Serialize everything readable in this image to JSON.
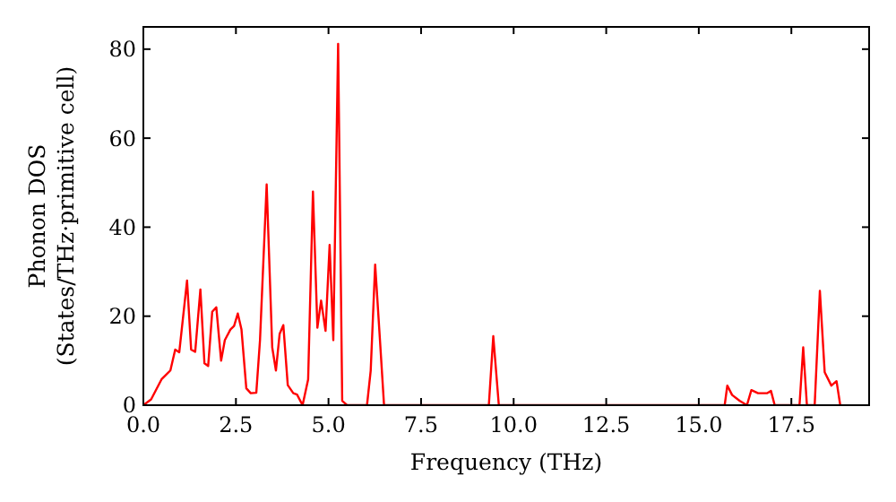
{
  "chart_data": {
    "type": "line",
    "xlabel": "Frequency (THz)",
    "ylabel": "Phonon DOS\n(States/THz·primitive cell)",
    "x": [
      0,
      0.21,
      0.49,
      0.73,
      0.86,
      0.97,
      1.18,
      1.29,
      1.4,
      1.54,
      1.65,
      1.75,
      1.86,
      1.97,
      2.1,
      2.2,
      2.35,
      2.45,
      2.55,
      2.65,
      2.78,
      2.9,
      3.05,
      3.15,
      3.33,
      3.48,
      3.58,
      3.68,
      3.78,
      3.9,
      4.05,
      4.15,
      4.3,
      4.45,
      4.58,
      4.7,
      4.8,
      4.92,
      5.03,
      5.13,
      5.26,
      5.37,
      5.5,
      6.04,
      6.14,
      6.26,
      6.39,
      6.5,
      9.33,
      9.45,
      9.6,
      15.7,
      15.77,
      15.9,
      16.1,
      16.3,
      16.42,
      16.6,
      16.85,
      16.95,
      17.05,
      17.72,
      17.82,
      17.92,
      18.13,
      18.27,
      18.4,
      18.58,
      18.72,
      18.82
    ],
    "series": [
      {
        "color": "#ff0000",
        "values": [
          0,
          1.3,
          5.8,
          7.8,
          12.5,
          11.9,
          28,
          12.5,
          12,
          26,
          9.4,
          8.8,
          21,
          22,
          10,
          14.6,
          17,
          17.8,
          20.6,
          17,
          3.8,
          2.7,
          2.8,
          14.6,
          49.6,
          13,
          7.8,
          16,
          18,
          4.5,
          2.7,
          2.4,
          0,
          5.8,
          48,
          17.4,
          23.5,
          16.7,
          36,
          14.6,
          81.2,
          1,
          0,
          0,
          7.8,
          31.6,
          14.6,
          0,
          0,
          15.5,
          0,
          0,
          4.4,
          2.3,
          1,
          0,
          3.4,
          2.7,
          2.7,
          3.2,
          0,
          0,
          13,
          0,
          0,
          25.7,
          7.4,
          4.4,
          5.4,
          0
        ]
      }
    ],
    "xlim": [
      0,
      19.6
    ],
    "ylim": [
      0,
      85
    ],
    "xticks": [
      {
        "value": 0,
        "label": "0.0"
      },
      2.5,
      {
        "value": 5,
        "label": "5.0"
      },
      7.5,
      {
        "value": 10,
        "label": "10.0"
      },
      12.5,
      {
        "value": 15,
        "label": "15.0"
      },
      17.5
    ],
    "yticks": [
      0,
      20,
      40,
      60,
      80
    ],
    "grid": false
  }
}
